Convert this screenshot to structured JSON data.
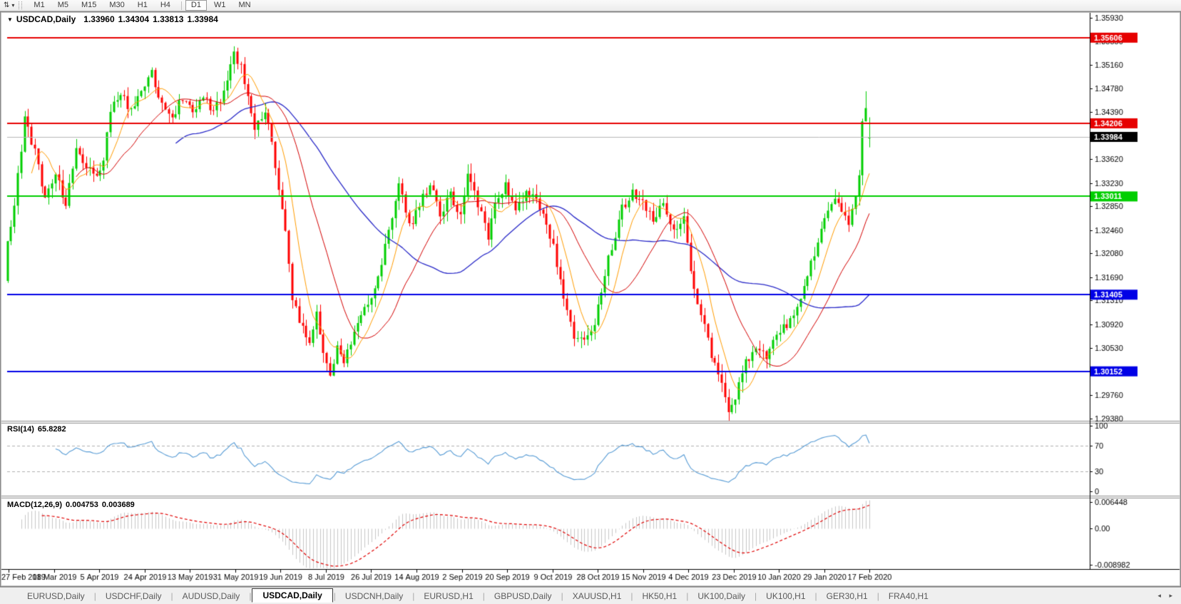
{
  "window": {
    "title_symbol": "USDCAD,Daily",
    "quote_open": "1.33960",
    "quote_high": "1.34304",
    "quote_low": "1.33813",
    "quote_close": "1.33984"
  },
  "icons": {
    "title_marker": "▼",
    "dropdown_caret": "▾",
    "symbol_ticks": "⇅",
    "tab_prev": "◂",
    "tab_next": "▸"
  },
  "toolbar": {
    "timeframes": [
      "M1",
      "M5",
      "M15",
      "M30",
      "H1",
      "H4",
      "D1",
      "W1",
      "MN"
    ],
    "active_timeframe": "D1"
  },
  "tabs": {
    "items": [
      "EURUSD,Daily",
      "USDCHF,Daily",
      "AUDUSD,Daily",
      "USDCAD,Daily",
      "USDCNH,Daily",
      "EURUSD,H1",
      "GBPUSD,Daily",
      "XAUUSD,H1",
      "HK50,H1",
      "UK100,Daily",
      "UK100,H1",
      "GER30,H1",
      "FRA40,H1"
    ],
    "active": "USDCAD,Daily"
  },
  "chart_data": {
    "type": "candlestick",
    "title": "USDCAD,Daily",
    "symbol": "USDCAD",
    "timeframe": "Daily",
    "panels": [
      "price",
      "rsi",
      "macd"
    ],
    "grid": false,
    "quote": {
      "open": 1.3396,
      "high": 1.34304,
      "low": 1.33813,
      "close": 1.33984
    },
    "y_axis": {
      "side": "right",
      "top_price": 1.35942,
      "bottom_price": 1.29368,
      "ticks": [
        "1.35930",
        "1.35550",
        "1.35160",
        "1.34780",
        "1.34390",
        "1.34000",
        "1.33620",
        "1.33230",
        "1.32850",
        "1.32460",
        "1.32080",
        "1.31690",
        "1.31310",
        "1.30920",
        "1.30530",
        "1.30140",
        "1.29760",
        "1.29380"
      ]
    },
    "x_axis": {
      "labels": [
        "27 Feb 2019",
        "18 Mar 2019",
        "5 Apr 2019",
        "24 Apr 2019",
        "13 May 2019",
        "31 May 2019",
        "19 Jun 2019",
        "8 Jul 2019",
        "26 Jul 2019",
        "14 Aug 2019",
        "2 Sep 2019",
        "20 Sep 2019",
        "9 Oct 2019",
        "28 Oct 2019",
        "15 Nov 2019",
        "4 Dec 2019",
        "23 Dec 2019",
        "10 Jan 2020",
        "29 Jan 2020",
        "17 Feb 2020"
      ]
    },
    "horizontal_levels": [
      {
        "price": 1.35606,
        "label": "1.35606",
        "color": "#E60000",
        "line_width": 2,
        "role": "resistance"
      },
      {
        "price": 1.34206,
        "label": "1.34206",
        "color": "#E60000",
        "line_width": 2,
        "role": "resistance"
      },
      {
        "price": 1.33984,
        "label": "1.33984",
        "color": "#B6B6B6",
        "tag_bg": "#000000",
        "line_width": 1,
        "role": "current-price"
      },
      {
        "price": 1.33011,
        "label": "1.33011",
        "color": "#00CE00",
        "line_width": 2,
        "role": "pivot"
      },
      {
        "price": 1.31405,
        "label": "1.31405",
        "color": "#0000E6",
        "line_width": 2,
        "role": "support"
      },
      {
        "price": 1.30152,
        "label": "1.30152",
        "color": "#0000E6",
        "line_width": 2,
        "role": "support"
      }
    ],
    "moving_averages": [
      {
        "period": 8,
        "color": "#FF9C00"
      },
      {
        "period": 21,
        "color": "#D40000"
      },
      {
        "period": 50,
        "color": "#2929C8"
      }
    ],
    "candles": {
      "count": 252,
      "up_color": "#00CE00",
      "down_color": "#FF0000"
    },
    "price_path_anchors": [
      [
        0,
        1.3225
      ],
      [
        2,
        1.329
      ],
      [
        5,
        1.3425
      ],
      [
        8,
        1.3375
      ],
      [
        11,
        1.33
      ],
      [
        14,
        1.3335
      ],
      [
        17,
        1.329
      ],
      [
        20,
        1.338
      ],
      [
        23,
        1.335
      ],
      [
        26,
        1.333
      ],
      [
        28,
        1.3365
      ],
      [
        30,
        1.344
      ],
      [
        33,
        1.347
      ],
      [
        36,
        1.344
      ],
      [
        39,
        1.3475
      ],
      [
        42,
        1.35
      ],
      [
        45,
        1.3455
      ],
      [
        48,
        1.343
      ],
      [
        51,
        1.3465
      ],
      [
        54,
        1.344
      ],
      [
        57,
        1.3465
      ],
      [
        60,
        1.3435
      ],
      [
        63,
        1.3475
      ],
      [
        66,
        1.354
      ],
      [
        68,
        1.351
      ],
      [
        70,
        1.3465
      ],
      [
        72,
        1.3415
      ],
      [
        75,
        1.344
      ],
      [
        77,
        1.339
      ],
      [
        79,
        1.331
      ],
      [
        81,
        1.325
      ],
      [
        83,
        1.3135
      ],
      [
        85,
        1.3095
      ],
      [
        88,
        1.306
      ],
      [
        90,
        1.3105
      ],
      [
        92,
        1.305
      ],
      [
        94,
        1.3015
      ],
      [
        96,
        1.3055
      ],
      [
        98,
        1.303
      ],
      [
        101,
        1.3075
      ],
      [
        104,
        1.312
      ],
      [
        107,
        1.3145
      ],
      [
        109,
        1.3195
      ],
      [
        112,
        1.327
      ],
      [
        114,
        1.3325
      ],
      [
        117,
        1.325
      ],
      [
        120,
        1.329
      ],
      [
        123,
        1.332
      ],
      [
        126,
        1.327
      ],
      [
        129,
        1.3305
      ],
      [
        132,
        1.327
      ],
      [
        134,
        1.3335
      ],
      [
        137,
        1.329
      ],
      [
        140,
        1.323
      ],
      [
        142,
        1.3285
      ],
      [
        145,
        1.332
      ],
      [
        148,
        1.328
      ],
      [
        151,
        1.331
      ],
      [
        154,
        1.329
      ],
      [
        157,
        1.3255
      ],
      [
        159,
        1.322
      ],
      [
        162,
        1.313
      ],
      [
        165,
        1.3075
      ],
      [
        168,
        1.306
      ],
      [
        171,
        1.309
      ],
      [
        173,
        1.315
      ],
      [
        176,
        1.322
      ],
      [
        179,
        1.328
      ],
      [
        182,
        1.331
      ],
      [
        185,
        1.329
      ],
      [
        188,
        1.3265
      ],
      [
        191,
        1.3295
      ],
      [
        194,
        1.3245
      ],
      [
        197,
        1.327
      ],
      [
        199,
        1.318
      ],
      [
        202,
        1.3105
      ],
      [
        205,
        1.3045
      ],
      [
        208,
        1.299
      ],
      [
        210,
        1.2955
      ],
      [
        212,
        1.2975
      ],
      [
        215,
        1.303
      ],
      [
        218,
        1.3055
      ],
      [
        221,
        1.304
      ],
      [
        223,
        1.307
      ],
      [
        226,
        1.3085
      ],
      [
        229,
        1.311
      ],
      [
        232,
        1.3155
      ],
      [
        235,
        1.3205
      ],
      [
        237,
        1.3245
      ],
      [
        239,
        1.3275
      ],
      [
        241,
        1.33
      ],
      [
        243,
        1.328
      ],
      [
        245,
        1.326
      ],
      [
        247,
        1.33
      ],
      [
        248,
        1.334
      ],
      [
        249,
        1.342
      ],
      [
        250,
        1.345
      ],
      [
        251,
        1.33984
      ]
    ],
    "indicators": {
      "rsi": {
        "label": "RSI(14)",
        "period": 14,
        "value": "65.8282",
        "levels": [
          "100",
          "70",
          "30",
          "0"
        ],
        "line_color": "#569BD5"
      },
      "macd": {
        "label": "MACD(12,26,9)",
        "fast": 12,
        "slow": 26,
        "signal": 9,
        "macd_value": "0.004753",
        "signal_value": "0.003689",
        "axis_ticks": [
          "0.006448",
          "0.00",
          "-0.008982"
        ],
        "histogram_color": "#C6C6C6",
        "signal_color": "#E00000"
      }
    }
  }
}
